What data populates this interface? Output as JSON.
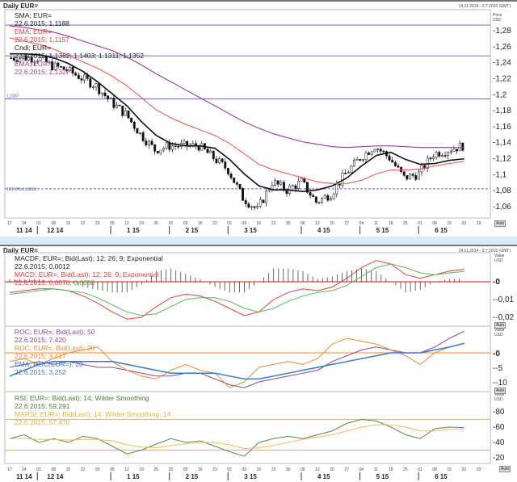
{
  "top": {
    "title": "Daily EUR=",
    "range": "14.11.2014 - 2.7.2015 (GMT)",
    "axis_unit": "Price\nUSD",
    "auto": "Auto",
    "legend": [
      {
        "name": "SMA; EUR=",
        "value": "22.6.2015; 1,1188",
        "color": "#222"
      },
      {
        "name": "EMA; EUR=",
        "value": "22.6.2015; 1,1157",
        "color": "#e04040"
      },
      {
        "name": "Cndl; EUR=",
        "value": "22.6.2015; 1,1362; 1,1403; 1.1311; 1,1352",
        "color": "#222"
      },
      {
        "name": "EMA; EUR=",
        "value": "22.6.2015; 1,1327",
        "color": "#a040a0"
      }
    ],
    "fib_labels": [
      "1,1937",
      "161,8% 1,0813"
    ]
  },
  "bottom": {
    "title": "Daily EUR=",
    "range": "14.11.2014 - 2.7.2015 (GMT)",
    "axis_unit": "Value\nUSD",
    "auto": "Auto",
    "macd_legend": [
      {
        "name": "MACDF; EUR=; Bid(Last);  12; 26; 9; Exponential",
        "value": "22.6.2015; 0,0012",
        "color": "#222"
      },
      {
        "name": "MACD; EUR=; Bid(Last);  12; 26; 9; Exponential",
        "value": "22.6.2015; 0,0070;",
        "value2": "0,0058",
        "color": "#e04040",
        "color2": "#4caf50"
      }
    ],
    "roc_legend": [
      {
        "name": "ROC; EUR=; Bid(Last);  50",
        "value": "22.6.2015; 7,420",
        "color": "#8a4a8a"
      },
      {
        "name": "ROC; EUR=; Bid(Last);  20",
        "value": "22.6.2015; 3,417",
        "color": "#f08a30"
      },
      {
        "name": "EMA; ROC(EUR=);  20",
        "value": "22.6.2015; 3,252",
        "color": "#3a78d0"
      }
    ],
    "rsi_legend": [
      {
        "name": "RSI; EUR=; Bid(Last);  14; Wilder Smoothing",
        "value": "22.6.2015; 59,291",
        "color": "#4a7a3a"
      },
      {
        "name": "MARSI; EUR=; Bid(Last);  14; Wilder Smoothing; 14",
        "value": "22.6.2015; 57,470",
        "color": "#e8b040"
      }
    ]
  },
  "chart_data": [
    {
      "type": "candlestick",
      "title": "Daily EUR=",
      "ylim": [
        1.05,
        1.29
      ],
      "yticks": [
        "1,28",
        "1,26",
        "1,24",
        "1,22",
        "1,2",
        "1,18",
        "1,16",
        "1,14",
        "1,12",
        "1,1",
        "1,08",
        "1,06"
      ],
      "ytick_values": [
        1.28,
        1.26,
        1.24,
        1.22,
        1.2,
        1.18,
        1.16,
        1.14,
        1.12,
        1.1,
        1.08,
        1.06
      ],
      "day_ticks": [
        "17",
        "24",
        "01",
        "08",
        "15",
        "22",
        "29",
        "05",
        "12",
        "19",
        "26",
        "02",
        "09",
        "16",
        "23",
        "02",
        "09",
        "16",
        "23",
        "30",
        "06",
        "13",
        "20",
        "27",
        "04",
        "11",
        "18",
        "25",
        "01",
        "08",
        "15",
        "22",
        "29"
      ],
      "month_labels": [
        "11 14",
        "12 14",
        "1 15",
        "2 15",
        "3 15",
        "4 15",
        "5 15",
        "6 15"
      ],
      "month_tick_index": [
        0,
        2,
        7,
        11,
        15,
        20,
        24,
        28
      ],
      "hlines": [
        1.286,
        1.2475,
        1.1937,
        1.0813
      ],
      "close": [
        1.245,
        1.245,
        1.245,
        1.235,
        1.23,
        1.22,
        1.21,
        1.19,
        1.175,
        1.15,
        1.13,
        1.135,
        1.135,
        1.135,
        1.12,
        1.105,
        1.07,
        1.055,
        1.09,
        1.08,
        1.09,
        1.065,
        1.075,
        1.1,
        1.12,
        1.135,
        1.12,
        1.095,
        1.1,
        1.125,
        1.13,
        1.1352
      ],
      "series": [
        {
          "name": "SMA",
          "color": "#111",
          "values": [
            1.25,
            1.25,
            1.249,
            1.245,
            1.238,
            1.228,
            1.215,
            1.2,
            1.185,
            1.165,
            1.148,
            1.138,
            1.135,
            1.135,
            1.132,
            1.118,
            1.1,
            1.085,
            1.08,
            1.08,
            1.078,
            1.08,
            1.085,
            1.095,
            1.11,
            1.123,
            1.127,
            1.118,
            1.112,
            1.113,
            1.117,
            1.1188
          ]
        },
        {
          "name": "EMA",
          "color": "#e86060",
          "values": [
            1.27,
            1.266,
            1.262,
            1.256,
            1.248,
            1.24,
            1.232,
            1.222,
            1.21,
            1.195,
            1.18,
            1.17,
            1.162,
            1.155,
            1.148,
            1.138,
            1.125,
            1.112,
            1.105,
            1.1,
            1.095,
            1.09,
            1.088,
            1.088,
            1.092,
            1.1,
            1.105,
            1.105,
            1.106,
            1.11,
            1.113,
            1.1157
          ]
        },
        {
          "name": "EMA long",
          "color": "#9a3a9a",
          "values": [
            1.285,
            1.283,
            1.28,
            1.277,
            1.272,
            1.266,
            1.26,
            1.254,
            1.246,
            1.236,
            1.225,
            1.215,
            1.205,
            1.195,
            1.185,
            1.175,
            1.165,
            1.157,
            1.15,
            1.145,
            1.14,
            1.137,
            1.134,
            1.133,
            1.134,
            1.135,
            1.135,
            1.134,
            1.133,
            1.133,
            1.133,
            1.1327
          ]
        }
      ]
    },
    {
      "type": "line",
      "title": "MACD",
      "ylim": [
        -0.025,
        0.015
      ],
      "yticks": [
        "0",
        "-0,01",
        "-0,02"
      ],
      "ytick_values": [
        0,
        -0.01,
        -0.02
      ],
      "series": [
        {
          "name": "MACD",
          "color": "#e04040",
          "values": [
            -0.006,
            -0.005,
            -0.004,
            -0.004,
            -0.005,
            -0.008,
            -0.012,
            -0.017,
            -0.021,
            -0.02,
            -0.014,
            -0.009,
            -0.007,
            -0.008,
            -0.011,
            -0.015,
            -0.019,
            -0.017,
            -0.01,
            -0.006,
            -0.004,
            -0.005,
            -0.003,
            0.002,
            0.008,
            0.012,
            0.01,
            0.004,
            0.002,
            0.004,
            0.006,
            0.007
          ]
        },
        {
          "name": "Signal",
          "color": "#5cb85c",
          "values": [
            -0.007,
            -0.006,
            -0.005,
            -0.004,
            -0.005,
            -0.006,
            -0.009,
            -0.013,
            -0.017,
            -0.019,
            -0.018,
            -0.014,
            -0.01,
            -0.009,
            -0.009,
            -0.011,
            -0.015,
            -0.017,
            -0.015,
            -0.011,
            -0.008,
            -0.006,
            -0.005,
            -0.002,
            0.003,
            0.008,
            0.01,
            0.008,
            0.005,
            0.004,
            0.005,
            0.0058
          ]
        }
      ]
    },
    {
      "type": "line",
      "title": "ROC",
      "yticks": [
        "0",
        "-5",
        "-10"
      ],
      "ytick_values": [
        0,
        -5,
        -10
      ],
      "series": [
        {
          "name": "ROC 50",
          "color": "#8a4a8a",
          "values": [
            -5,
            -4,
            -3,
            -4,
            -3,
            -4,
            -5,
            -5,
            -6,
            -7,
            -8,
            -8,
            -7,
            -7,
            -9,
            -11,
            -12,
            -10,
            -9,
            -8,
            -7,
            -6,
            -3,
            -1,
            1,
            2,
            1,
            0,
            0,
            2,
            5,
            7.42
          ]
        },
        {
          "name": "ROC 20",
          "color": "#f08a30",
          "values": [
            -3,
            -2,
            -4,
            -2,
            0,
            1,
            2,
            -3,
            -6,
            -8,
            -9,
            -6,
            -4,
            -6,
            -7,
            -12,
            -10,
            -5,
            -4,
            -3,
            -4,
            -2,
            3,
            5,
            4,
            3,
            1,
            -1,
            -4,
            0,
            2,
            3.417
          ]
        },
        {
          "name": "EMA ROC",
          "color": "#3a78d0",
          "values": [
            -8,
            -6,
            -4,
            -3,
            -3,
            -3,
            -3,
            -3,
            -4,
            -5,
            -6,
            -7,
            -7,
            -7,
            -7,
            -8,
            -9,
            -9,
            -8,
            -7,
            -6,
            -5,
            -4,
            -3,
            -2,
            -1,
            0,
            0,
            0,
            1,
            2,
            3.252
          ]
        }
      ]
    },
    {
      "type": "line",
      "title": "RSI",
      "yticks": [
        "80",
        "60",
        "40",
        "20"
      ],
      "ytick_values": [
        80,
        60,
        40,
        20
      ],
      "hlines": [
        70,
        30
      ],
      "series": [
        {
          "name": "RSI",
          "color": "#5a8a4a",
          "values": [
            45,
            50,
            40,
            45,
            40,
            48,
            45,
            35,
            25,
            30,
            38,
            45,
            40,
            42,
            35,
            28,
            22,
            40,
            45,
            48,
            45,
            50,
            55,
            65,
            70,
            68,
            60,
            50,
            45,
            58,
            60,
            59.291
          ]
        },
        {
          "name": "MARSI",
          "color": "#e8c060",
          "values": [
            45,
            45,
            44,
            44,
            43,
            44,
            44,
            42,
            37,
            34,
            33,
            36,
            38,
            40,
            40,
            37,
            32,
            33,
            36,
            40,
            44,
            47,
            50,
            55,
            60,
            63,
            63,
            60,
            55,
            55,
            57,
            57.47
          ]
        }
      ]
    }
  ]
}
